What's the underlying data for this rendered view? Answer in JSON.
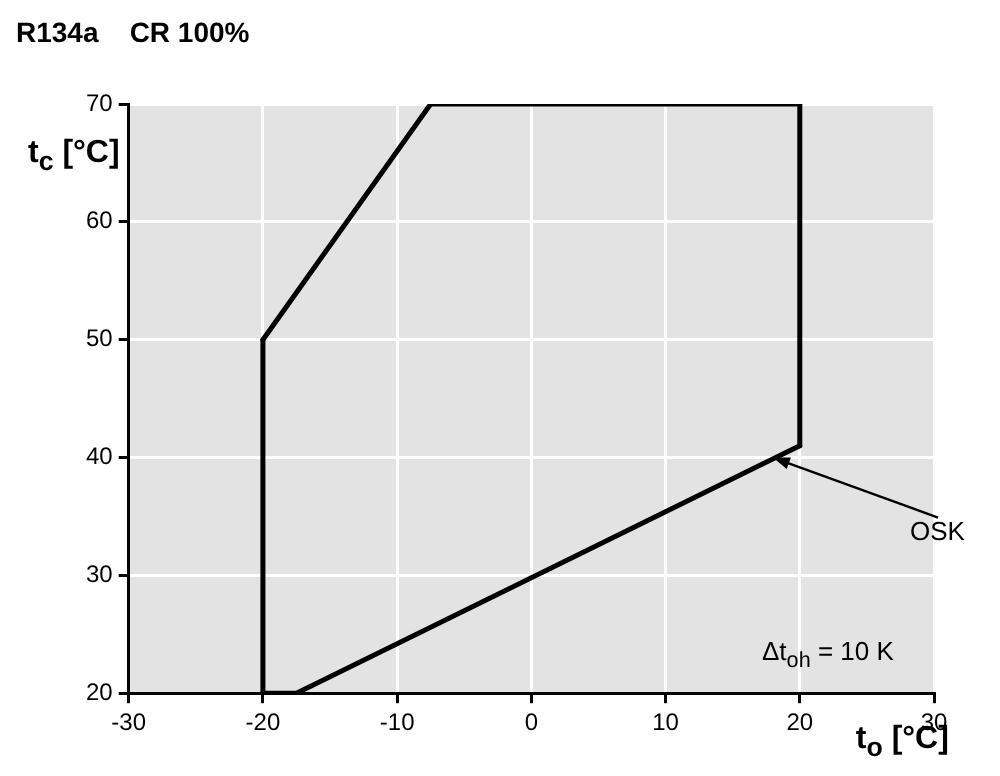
{
  "chart_data": {
    "type": "line",
    "title": "R134a    CR 100%",
    "xlabel": "t$_{o}$ [°C]",
    "ylabel": "t$_{c}$ [°C]",
    "series": [
      {
        "color": "#000000",
        "x": [
          -20,
          -7.5,
          20
        ],
        "values": [
          50,
          70,
          70
        ]
      },
      {
        "color": "#000000",
        "x": [
          -20,
          -17.5,
          20
        ],
        "values": [
          20,
          20,
          41
        ]
      },
      {
        "color": "#000000",
        "x": [
          -20,
          -20
        ],
        "values": [
          20,
          50
        ]
      },
      {
        "color": "#000000",
        "x": [
          20,
          20
        ],
        "values": [
          41,
          70
        ]
      }
    ],
    "xlim": [
      -30,
      30
    ],
    "xticks": [
      -30,
      -20,
      -10,
      0,
      10,
      20,
      30
    ],
    "ylim": [
      20,
      70
    ],
    "yticks": [
      20,
      30,
      40,
      50,
      60,
      70
    ],
    "grid": true,
    "legend": false,
    "marker": "none",
    "line_style": "solid",
    "annotations": [
      {
        "text": "OSK",
        "x": 18,
        "y": 40
      },
      "Δt$_{oh}$ = 10 K"
    ]
  }
}
